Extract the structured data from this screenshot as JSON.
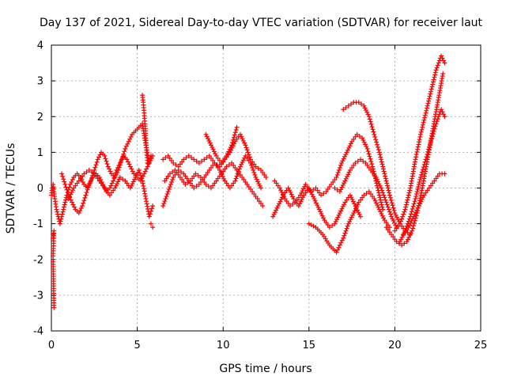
{
  "chart_data": {
    "type": "scatter",
    "title": "Day 137 of 2021, Sidereal Day-to-day VTEC variation (SDTVAR) for receiver laut",
    "xlabel": "GPS time / hours",
    "ylabel": "SDTVAR / TECUs",
    "xlim": [
      0,
      25
    ],
    "ylim": [
      -4,
      4
    ],
    "xticks": [
      0,
      5,
      10,
      15,
      20,
      25
    ],
    "yticks": [
      -4,
      -3,
      -2,
      -1,
      0,
      1,
      2,
      3,
      4
    ],
    "grid": true,
    "marker": "+",
    "color": "#ff0000",
    "series": [
      {
        "name": "s1",
        "x": [
          0.0,
          0.05,
          0.1,
          0.15,
          0.2,
          0.3,
          0.5,
          0.7,
          0.9,
          1.1,
          1.3,
          1.5,
          1.7,
          1.9,
          2.1,
          2.3,
          2.5,
          2.7,
          2.9,
          3.1,
          3.3,
          3.5,
          3.7,
          3.9,
          4.1,
          4.3,
          4.5,
          4.7,
          4.9,
          5.1,
          5.3,
          5.5,
          5.7,
          5.9
        ],
        "y": [
          -0.2,
          0.0,
          0.1,
          -0.1,
          -0.3,
          -0.6,
          -1.0,
          -0.6,
          -0.2,
          0.1,
          0.3,
          0.4,
          0.3,
          0.1,
          0.0,
          0.2,
          0.5,
          0.8,
          1.0,
          0.9,
          0.6,
          0.4,
          0.3,
          0.5,
          0.8,
          1.1,
          1.3,
          1.5,
          1.6,
          1.7,
          1.8,
          1.2,
          0.7,
          0.9
        ]
      },
      {
        "name": "s2",
        "x": [
          0.6,
          0.8,
          1.0,
          1.2,
          1.4,
          1.6,
          1.8,
          2.0,
          2.2,
          2.4,
          2.6,
          2.8,
          3.0,
          3.2,
          3.4,
          3.6,
          3.8,
          4.0,
          4.2,
          4.4,
          4.6,
          4.8,
          5.0,
          5.2,
          5.4,
          5.6,
          5.8
        ],
        "y": [
          0.4,
          0.1,
          -0.2,
          -0.4,
          -0.6,
          -0.7,
          -0.5,
          -0.2,
          0.1,
          0.3,
          0.4,
          0.3,
          0.1,
          -0.1,
          0.0,
          0.2,
          0.5,
          0.7,
          0.9,
          0.8,
          0.6,
          0.4,
          0.3,
          0.2,
          0.4,
          0.6,
          0.9
        ]
      },
      {
        "name": "s3",
        "x": [
          1.0,
          1.3,
          1.6,
          1.9,
          2.2,
          2.5,
          2.8,
          3.1,
          3.4,
          3.7,
          4.0,
          4.3,
          4.6,
          4.9,
          5.1,
          5.3,
          5.5,
          5.7,
          5.9
        ],
        "y": [
          -0.3,
          0.0,
          0.2,
          0.4,
          0.5,
          0.4,
          0.2,
          0.0,
          -0.2,
          0.0,
          0.3,
          0.2,
          0.0,
          0.3,
          0.5,
          0.2,
          -0.3,
          -0.8,
          -0.5
        ]
      },
      {
        "name": "s4",
        "x": [
          5.3,
          5.35,
          5.4,
          5.45,
          5.5,
          5.55,
          5.6
        ],
        "y": [
          2.6,
          2.4,
          2.1,
          1.8,
          1.4,
          1.0,
          0.7
        ]
      },
      {
        "name": "s5",
        "x": [
          6.5,
          6.8,
          7.1,
          7.4,
          7.7,
          8.0,
          8.3,
          8.6,
          8.9,
          9.2,
          9.5,
          9.8,
          10.1,
          10.4,
          10.7,
          11.0,
          11.3,
          11.6,
          11.9,
          12.2,
          12.5
        ],
        "y": [
          0.8,
          0.9,
          0.7,
          0.6,
          0.8,
          0.9,
          0.8,
          0.7,
          0.8,
          0.9,
          0.7,
          0.6,
          0.8,
          1.0,
          1.3,
          1.5,
          1.2,
          0.8,
          0.6,
          0.5,
          0.3
        ]
      },
      {
        "name": "s6",
        "x": [
          6.6,
          6.9,
          7.2,
          7.5,
          7.8,
          8.1,
          8.4,
          8.7,
          9.0,
          9.3,
          9.6,
          9.9,
          10.2,
          10.5,
          10.8,
          11.1,
          11.4,
          11.7,
          12.0,
          12.3
        ],
        "y": [
          0.2,
          0.4,
          0.5,
          0.3,
          0.1,
          0.2,
          0.4,
          0.3,
          0.1,
          0.0,
          0.2,
          0.4,
          0.6,
          0.7,
          0.5,
          0.3,
          0.1,
          -0.1,
          -0.3,
          -0.5
        ]
      },
      {
        "name": "s7",
        "x": [
          6.5,
          6.8,
          7.1,
          7.4,
          7.7,
          8.0,
          8.3,
          8.6,
          8.9,
          9.2,
          9.5,
          9.8,
          10.1,
          10.4,
          10.7,
          11.0,
          11.3,
          11.6,
          11.9,
          12.2
        ],
        "y": [
          -0.5,
          -0.1,
          0.3,
          0.5,
          0.4,
          0.2,
          0.0,
          0.1,
          0.3,
          0.5,
          0.7,
          0.5,
          0.2,
          0.0,
          0.2,
          0.6,
          0.9,
          0.7,
          0.3,
          0.0
        ]
      },
      {
        "name": "s8",
        "x": [
          9.0,
          9.3,
          9.6,
          9.9,
          10.2,
          10.5,
          10.8
        ],
        "y": [
          1.5,
          1.2,
          0.9,
          0.7,
          0.9,
          1.2,
          1.7
        ]
      },
      {
        "name": "s9",
        "x": [
          12.9,
          13.2,
          13.5,
          13.8,
          14.1,
          14.4,
          14.7,
          15.0,
          15.3,
          15.6,
          15.9,
          16.2,
          16.5,
          16.8,
          17.1,
          17.4,
          17.7,
          18.0
        ],
        "y": [
          -0.8,
          -0.5,
          -0.2,
          0.0,
          -0.3,
          -0.5,
          -0.2,
          0.0,
          -0.3,
          -0.6,
          -0.9,
          -1.1,
          -1.0,
          -0.7,
          -0.4,
          -0.2,
          -0.5,
          -0.8
        ]
      },
      {
        "name": "s10",
        "x": [
          13.0,
          13.3,
          13.6,
          13.9,
          14.2,
          14.5,
          14.8,
          15.1,
          15.4,
          15.7,
          16.0,
          16.3,
          16.6,
          16.9,
          17.2,
          17.5,
          17.8,
          18.1,
          18.4,
          18.7,
          19.0,
          19.3
        ],
        "y": [
          0.2,
          0.0,
          -0.3,
          -0.5,
          -0.4,
          -0.2,
          0.1,
          -0.1,
          0.0,
          -0.2,
          -0.1,
          0.1,
          0.3,
          0.7,
          1.0,
          1.3,
          1.5,
          1.4,
          1.1,
          0.6,
          0.0,
          -0.6
        ]
      },
      {
        "name": "s11",
        "x": [
          15.0,
          15.4,
          15.8,
          16.2,
          16.6,
          17.0,
          17.3,
          17.6,
          17.9,
          18.2,
          18.5,
          18.8,
          19.1,
          19.4,
          19.7
        ],
        "y": [
          -1.0,
          -1.1,
          -1.3,
          -1.6,
          -1.8,
          -1.4,
          -1.0,
          -0.7,
          -0.4,
          -0.2,
          -0.1,
          -0.3,
          -0.6,
          -0.9,
          -1.1
        ]
      },
      {
        "name": "s12",
        "x": [
          16.5,
          16.8,
          17.1,
          17.4,
          17.7,
          18.0,
          18.3,
          18.6,
          18.9,
          19.2,
          19.5,
          19.8,
          20.1
        ],
        "y": [
          0.0,
          -0.1,
          0.2,
          0.5,
          0.7,
          0.8,
          0.7,
          0.5,
          0.3,
          0.0,
          -0.4,
          -0.8,
          -1.1
        ]
      },
      {
        "name": "s13",
        "x": [
          17.0,
          17.3,
          17.6,
          17.9,
          18.2,
          18.5,
          18.8,
          19.1,
          19.4,
          19.7,
          20.0,
          20.3,
          20.6,
          20.9
        ],
        "y": [
          2.2,
          2.3,
          2.4,
          2.4,
          2.3,
          2.0,
          1.5,
          1.0,
          0.4,
          -0.2,
          -0.7,
          -1.0,
          -1.2,
          -1.3
        ]
      },
      {
        "name": "s14",
        "x": [
          19.5,
          19.8,
          20.1,
          20.4,
          20.7,
          21.0,
          21.3,
          21.6,
          21.9,
          22.2,
          22.5,
          22.8
        ],
        "y": [
          -1.1,
          -1.3,
          -1.5,
          -1.6,
          -1.5,
          -1.2,
          -0.7,
          0.0,
          0.8,
          1.6,
          2.4,
          3.2
        ]
      },
      {
        "name": "s15",
        "x": [
          20.0,
          20.3,
          20.6,
          20.9,
          21.2,
          21.5,
          21.8,
          22.1,
          22.4,
          22.7,
          22.9
        ],
        "y": [
          -1.2,
          -1.0,
          -0.6,
          0.0,
          0.8,
          1.5,
          2.1,
          2.7,
          3.3,
          3.7,
          3.5
        ]
      },
      {
        "name": "s16",
        "x": [
          20.3,
          20.6,
          20.9,
          21.2,
          21.5,
          21.8,
          22.1,
          22.4,
          22.7,
          22.9
        ],
        "y": [
          -1.5,
          -1.2,
          -0.8,
          -0.3,
          0.3,
          0.8,
          1.3,
          1.8,
          2.2,
          2.0
        ]
      },
      {
        "name": "s17",
        "x": [
          20.5,
          20.8,
          21.1,
          21.4,
          21.7,
          22.0,
          22.3,
          22.6,
          22.9
        ],
        "y": [
          -1.3,
          -1.1,
          -0.8,
          -0.5,
          -0.2,
          0.0,
          0.2,
          0.4,
          0.4
        ]
      },
      {
        "name": "s18",
        "x": [
          0.1,
          0.1,
          0.15,
          0.1,
          0.1,
          0.15
        ],
        "y": [
          -1.3,
          -1.4,
          -1.2,
          -1.9,
          -2.0,
          -3.35
        ]
      },
      {
        "name": "s19",
        "x": [
          5.8,
          5.9
        ],
        "y": [
          -1.0,
          -1.1
        ]
      }
    ]
  }
}
